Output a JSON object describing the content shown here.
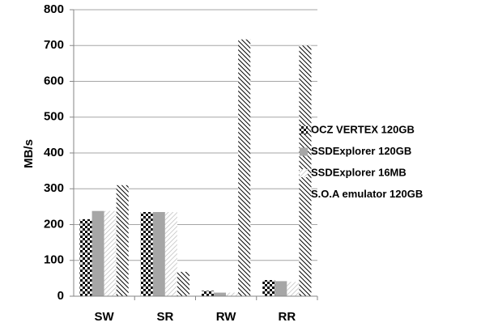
{
  "chart_data": {
    "type": "bar",
    "y_label": "MB/s",
    "categories": [
      "SW",
      "SR",
      "RW",
      "RR"
    ],
    "series": [
      {
        "name": "OCZ VERTEX 120GB",
        "color": "#000000",
        "pattern": "checkerboard",
        "values": [
          215,
          235,
          15,
          45
        ]
      },
      {
        "name": "SSDExplorer 120GB",
        "color": "#a6a6a6",
        "pattern": "solid",
        "values": [
          238,
          235,
          10,
          42
        ]
      },
      {
        "name": "SSDExplorer 16MB",
        "color": "#bfbfbf",
        "pattern": "hatch-light",
        "values": [
          238,
          235,
          10,
          40
        ]
      },
      {
        "name": "S.O.A emulator 120GB",
        "color": "#000000",
        "pattern": "hatch-dense",
        "values": [
          310,
          68,
          717,
          700
        ]
      }
    ],
    "ylim": [
      0,
      800
    ],
    "yticks": [
      0,
      100,
      200,
      300,
      400,
      500,
      600,
      700,
      800
    ],
    "grid": true,
    "legend": "right"
  }
}
